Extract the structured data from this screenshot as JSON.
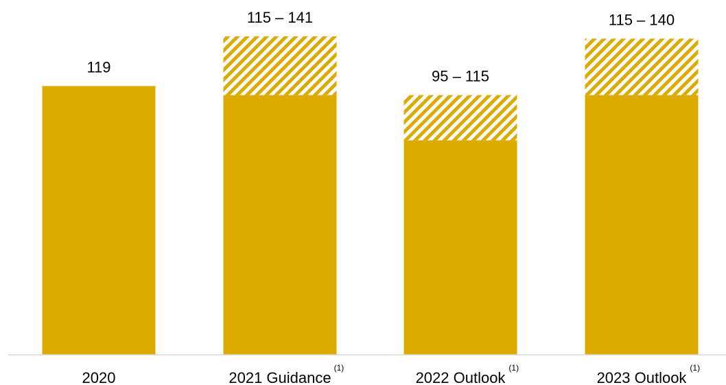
{
  "chart_data": {
    "type": "bar",
    "stacked_range": true,
    "categories": [
      "2020",
      "2021 Guidance",
      "2022 Outlook",
      "2023 Outlook"
    ],
    "footnote_markers": [
      "",
      "(1)",
      "(1)",
      "(1)"
    ],
    "low": [
      119,
      115,
      95,
      115
    ],
    "high": [
      119,
      141,
      115,
      140
    ],
    "value_labels": [
      "119",
      "115 – 141",
      "95 – 115",
      "115 – 140"
    ],
    "ylim": [
      0,
      141
    ],
    "colors": {
      "bar": "#DDAA00",
      "hatch_stripe": "#DDAA00",
      "hatch_bg": "#FFFFFF",
      "axis": "#D9D9D9"
    }
  }
}
